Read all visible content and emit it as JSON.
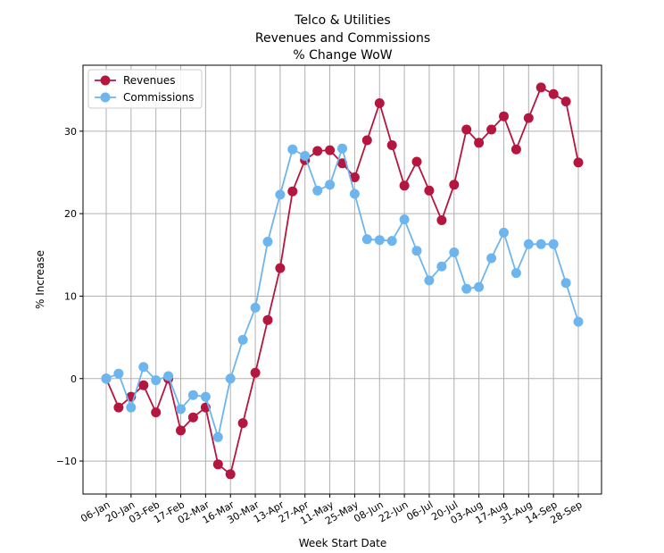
{
  "chart_data": {
    "type": "line",
    "title": "Telco & Utilities",
    "subtitle": [
      "Revenues and Commissions",
      "% Change WoW"
    ],
    "xlabel": "Week Start Date",
    "ylabel": "% Increase",
    "ylim": [
      -14,
      38
    ],
    "yticks": [
      -10,
      0,
      10,
      20,
      30
    ],
    "grid": true,
    "legend": "upper-left",
    "x": [
      "06-Jan",
      "13-Jan",
      "20-Jan",
      "27-Jan",
      "03-Feb",
      "10-Feb",
      "17-Feb",
      "24-Feb",
      "02-Mar",
      "09-Mar",
      "16-Mar",
      "23-Mar",
      "30-Mar",
      "06-Apr",
      "13-Apr",
      "20-Apr",
      "27-Apr",
      "04-May",
      "11-May",
      "18-May",
      "25-May",
      "01-Jun",
      "08-Jun",
      "15-Jun",
      "22-Jun",
      "29-Jun",
      "06-Jul",
      "13-Jul",
      "20-Jul",
      "27-Jul",
      "03-Aug",
      "10-Aug",
      "17-Aug",
      "24-Aug",
      "31-Aug",
      "07-Sep",
      "14-Sep",
      "21-Sep",
      "28-Sep"
    ],
    "xtick_labels": [
      "06-Jan",
      "20-Jan",
      "03-Feb",
      "17-Feb",
      "02-Mar",
      "16-Mar",
      "30-Mar",
      "13-Apr",
      "27-Apr",
      "11-May",
      "25-May",
      "08-Jun",
      "22-Jun",
      "06-Jul",
      "20-Jul",
      "03-Aug",
      "17-Aug",
      "31-Aug",
      "14-Sep",
      "28-Sep"
    ],
    "series": [
      {
        "name": "Revenues",
        "color": "#b5163f",
        "values": [
          0.0,
          -3.5,
          -2.2,
          -0.8,
          -4.1,
          0.0,
          -6.3,
          -4.7,
          -3.5,
          -10.4,
          -11.6,
          -5.4,
          0.7,
          7.1,
          13.4,
          22.7,
          26.5,
          27.6,
          27.7,
          26.1,
          24.4,
          28.9,
          33.4,
          28.3,
          23.4,
          26.3,
          22.8,
          19.2,
          23.5,
          30.2,
          28.6,
          30.2,
          31.8,
          27.8,
          31.6,
          35.3,
          34.5,
          33.6,
          26.2
        ]
      },
      {
        "name": "Commissions",
        "color": "#6db5ee",
        "values": [
          0.0,
          0.6,
          -3.5,
          1.4,
          -0.2,
          0.3,
          -3.7,
          -2.0,
          -2.2,
          -7.1,
          0.0,
          4.7,
          8.6,
          16.6,
          22.3,
          27.8,
          27.0,
          22.8,
          23.5,
          27.9,
          22.4,
          16.9,
          16.8,
          16.7,
          19.3,
          15.5,
          11.9,
          13.6,
          15.3,
          10.9,
          11.1,
          14.6,
          17.7,
          12.8,
          16.3,
          16.3,
          16.3,
          11.6,
          6.9
        ]
      }
    ]
  }
}
